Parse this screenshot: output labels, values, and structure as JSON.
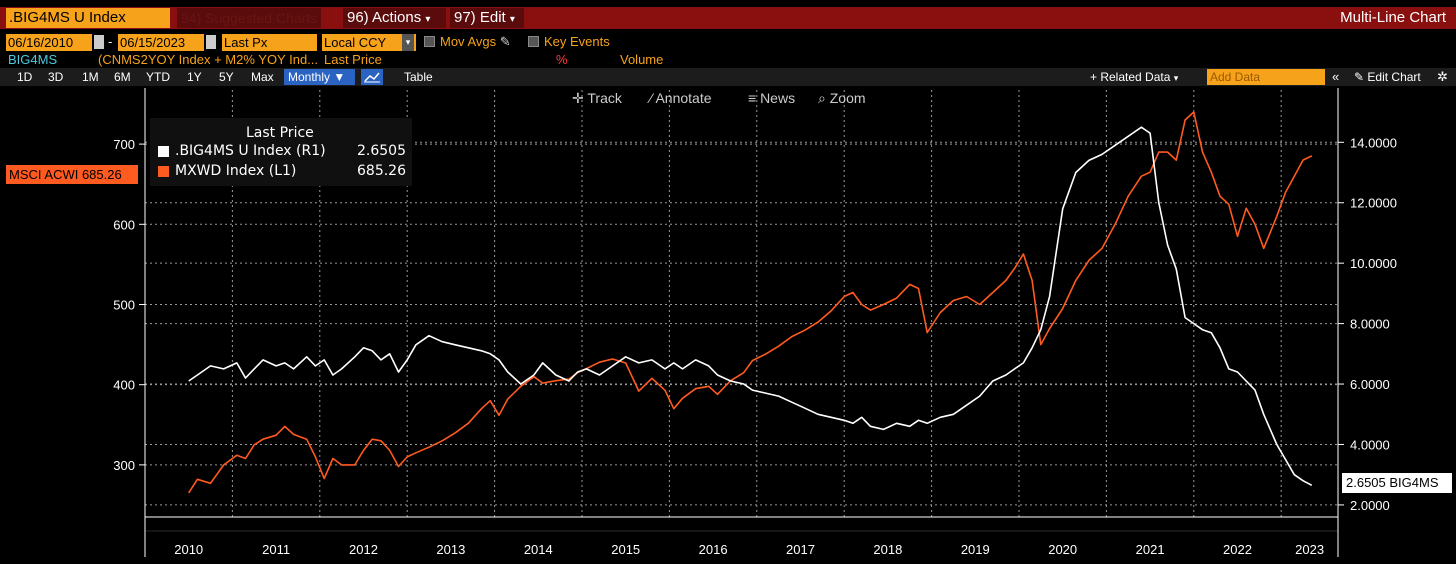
{
  "header": {
    "ticker": ".BIG4MS U Index",
    "suggested": "94) Suggested Charts",
    "actions": "96) Actions",
    "edit": "97) Edit",
    "chart_type": "Multi-Line Chart"
  },
  "controls": {
    "start_date": "06/16/2010",
    "end_date": "06/15/2023",
    "field": "Last Px",
    "currency": "Local CCY",
    "mov_avgs": "Mov Avgs",
    "key_events": "Key Events"
  },
  "series_row": {
    "name": "BIG4MS",
    "formula": "(CNMS2YOY Index + M2% YOY Ind...",
    "field": "Last Price",
    "pct": "%",
    "volume": "Volume"
  },
  "toolbar": {
    "periods": [
      "1D",
      "3D",
      "1M",
      "6M",
      "YTD",
      "1Y",
      "5Y",
      "Max"
    ],
    "frequency": "Monthly",
    "table": "Table",
    "related": "+ Related Data",
    "add_data_placeholder": "Add Data",
    "edit_chart": "Edit Chart"
  },
  "chart_tools": {
    "track": "Track",
    "annotate": "Annotate",
    "news": "News",
    "zoom": "Zoom"
  },
  "legend": {
    "title": "Last Price",
    "rows": [
      {
        "label": ".BIG4MS U Index  (R1)",
        "value": "2.6505",
        "color": "#ffffff"
      },
      {
        "label": "MXWD Index  (L1)",
        "value": "685.26",
        "color": "#ff5a1f"
      }
    ]
  },
  "flags": {
    "left": "MSCI ACWI 685.26",
    "right": "2.6505 BIG4MS"
  },
  "chart_data": {
    "type": "line",
    "x_labels": [
      "2010",
      "2011",
      "2012",
      "2013",
      "2014",
      "2015",
      "2016",
      "2017",
      "2018",
      "2019",
      "2020",
      "2021",
      "2022",
      "2023"
    ],
    "left_axis": {
      "ticks": [
        300,
        400,
        500,
        600,
        700
      ],
      "range": [
        235,
        755
      ]
    },
    "right_axis": {
      "ticks": [
        "2.0000",
        "4.0000",
        "6.0000",
        "8.0000",
        "10.0000",
        "12.0000",
        "14.0000"
      ],
      "range": [
        1.6,
        15.4
      ]
    },
    "grid": true,
    "series": [
      {
        "name": "MXWD Index",
        "axis": "left",
        "color": "#ff5a1f",
        "values": [
          [
            2010.5,
            265
          ],
          [
            2010.6,
            282
          ],
          [
            2010.75,
            277
          ],
          [
            2010.9,
            300
          ],
          [
            2011.05,
            312
          ],
          [
            2011.15,
            308
          ],
          [
            2011.25,
            325
          ],
          [
            2011.35,
            332
          ],
          [
            2011.5,
            337
          ],
          [
            2011.6,
            348
          ],
          [
            2011.7,
            338
          ],
          [
            2011.85,
            332
          ],
          [
            2011.95,
            310
          ],
          [
            2012.05,
            283
          ],
          [
            2012.15,
            308
          ],
          [
            2012.25,
            300
          ],
          [
            2012.4,
            300
          ],
          [
            2012.5,
            318
          ],
          [
            2012.6,
            332
          ],
          [
            2012.7,
            330
          ],
          [
            2012.8,
            318
          ],
          [
            2012.9,
            298
          ],
          [
            2013.0,
            310
          ],
          [
            2013.1,
            315
          ],
          [
            2013.25,
            322
          ],
          [
            2013.4,
            330
          ],
          [
            2013.55,
            340
          ],
          [
            2013.7,
            352
          ],
          [
            2013.85,
            370
          ],
          [
            2013.95,
            380
          ],
          [
            2014.05,
            362
          ],
          [
            2014.15,
            382
          ],
          [
            2014.3,
            398
          ],
          [
            2014.45,
            410
          ],
          [
            2014.55,
            402
          ],
          [
            2014.7,
            405
          ],
          [
            2014.85,
            407
          ],
          [
            2014.95,
            415
          ],
          [
            2015.05,
            420
          ],
          [
            2015.2,
            428
          ],
          [
            2015.35,
            432
          ],
          [
            2015.5,
            427
          ],
          [
            2015.65,
            392
          ],
          [
            2015.8,
            408
          ],
          [
            2015.95,
            393
          ],
          [
            2016.05,
            370
          ],
          [
            2016.15,
            383
          ],
          [
            2016.3,
            395
          ],
          [
            2016.45,
            398
          ],
          [
            2016.55,
            388
          ],
          [
            2016.7,
            405
          ],
          [
            2016.85,
            415
          ],
          [
            2016.95,
            430
          ],
          [
            2017.1,
            438
          ],
          [
            2017.25,
            448
          ],
          [
            2017.4,
            460
          ],
          [
            2017.55,
            468
          ],
          [
            2017.7,
            478
          ],
          [
            2017.85,
            492
          ],
          [
            2018.0,
            510
          ],
          [
            2018.1,
            515
          ],
          [
            2018.2,
            500
          ],
          [
            2018.3,
            493
          ],
          [
            2018.45,
            500
          ],
          [
            2018.6,
            508
          ],
          [
            2018.75,
            525
          ],
          [
            2018.85,
            520
          ],
          [
            2018.95,
            465
          ],
          [
            2019.1,
            490
          ],
          [
            2019.25,
            505
          ],
          [
            2019.4,
            510
          ],
          [
            2019.55,
            500
          ],
          [
            2019.7,
            515
          ],
          [
            2019.85,
            530
          ],
          [
            2019.95,
            545
          ],
          [
            2020.05,
            563
          ],
          [
            2020.15,
            530
          ],
          [
            2020.25,
            450
          ],
          [
            2020.35,
            470
          ],
          [
            2020.5,
            495
          ],
          [
            2020.65,
            530
          ],
          [
            2020.8,
            555
          ],
          [
            2020.95,
            570
          ],
          [
            2021.1,
            600
          ],
          [
            2021.25,
            635
          ],
          [
            2021.4,
            660
          ],
          [
            2021.5,
            665
          ],
          [
            2021.6,
            690
          ],
          [
            2021.7,
            690
          ],
          [
            2021.8,
            680
          ],
          [
            2021.9,
            730
          ],
          [
            2022.0,
            740
          ],
          [
            2022.1,
            690
          ],
          [
            2022.2,
            665
          ],
          [
            2022.3,
            635
          ],
          [
            2022.4,
            625
          ],
          [
            2022.5,
            585
          ],
          [
            2022.6,
            620
          ],
          [
            2022.7,
            600
          ],
          [
            2022.8,
            570
          ],
          [
            2022.95,
            610
          ],
          [
            2023.05,
            640
          ],
          [
            2023.15,
            660
          ],
          [
            2023.25,
            680
          ],
          [
            2023.35,
            685.26
          ]
        ]
      },
      {
        "name": ".BIG4MS U Index",
        "axis": "right",
        "color": "#ffffff",
        "values": [
          [
            2010.5,
            6.1
          ],
          [
            2010.6,
            6.3
          ],
          [
            2010.75,
            6.6
          ],
          [
            2010.9,
            6.5
          ],
          [
            2011.05,
            6.7
          ],
          [
            2011.15,
            6.2
          ],
          [
            2011.25,
            6.5
          ],
          [
            2011.35,
            6.8
          ],
          [
            2011.5,
            6.6
          ],
          [
            2011.6,
            6.7
          ],
          [
            2011.7,
            6.5
          ],
          [
            2011.85,
            6.9
          ],
          [
            2011.95,
            6.6
          ],
          [
            2012.05,
            6.8
          ],
          [
            2012.15,
            6.3
          ],
          [
            2012.25,
            6.5
          ],
          [
            2012.4,
            6.9
          ],
          [
            2012.5,
            7.2
          ],
          [
            2012.6,
            7.1
          ],
          [
            2012.7,
            6.8
          ],
          [
            2012.8,
            7.0
          ],
          [
            2012.9,
            6.4
          ],
          [
            2013.0,
            6.8
          ],
          [
            2013.1,
            7.3
          ],
          [
            2013.25,
            7.6
          ],
          [
            2013.4,
            7.4
          ],
          [
            2013.55,
            7.3
          ],
          [
            2013.7,
            7.2
          ],
          [
            2013.85,
            7.1
          ],
          [
            2013.95,
            7.0
          ],
          [
            2014.05,
            6.8
          ],
          [
            2014.15,
            6.4
          ],
          [
            2014.3,
            6.0
          ],
          [
            2014.45,
            6.3
          ],
          [
            2014.55,
            6.7
          ],
          [
            2014.7,
            6.3
          ],
          [
            2014.85,
            6.1
          ],
          [
            2014.95,
            6.4
          ],
          [
            2015.05,
            6.5
          ],
          [
            2015.2,
            6.3
          ],
          [
            2015.35,
            6.6
          ],
          [
            2015.5,
            6.9
          ],
          [
            2015.65,
            6.7
          ],
          [
            2015.8,
            6.8
          ],
          [
            2015.95,
            6.5
          ],
          [
            2016.05,
            6.7
          ],
          [
            2016.15,
            6.5
          ],
          [
            2016.3,
            6.8
          ],
          [
            2016.45,
            6.6
          ],
          [
            2016.55,
            6.3
          ],
          [
            2016.7,
            6.1
          ],
          [
            2016.85,
            6.0
          ],
          [
            2016.95,
            5.8
          ],
          [
            2017.1,
            5.7
          ],
          [
            2017.25,
            5.6
          ],
          [
            2017.4,
            5.4
          ],
          [
            2017.55,
            5.2
          ],
          [
            2017.7,
            5.0
          ],
          [
            2017.85,
            4.9
          ],
          [
            2018.0,
            4.8
          ],
          [
            2018.1,
            4.7
          ],
          [
            2018.2,
            4.9
          ],
          [
            2018.3,
            4.6
          ],
          [
            2018.45,
            4.5
          ],
          [
            2018.6,
            4.7
          ],
          [
            2018.75,
            4.6
          ],
          [
            2018.85,
            4.8
          ],
          [
            2018.95,
            4.7
          ],
          [
            2019.1,
            4.9
          ],
          [
            2019.25,
            5.0
          ],
          [
            2019.4,
            5.3
          ],
          [
            2019.55,
            5.6
          ],
          [
            2019.7,
            6.1
          ],
          [
            2019.85,
            6.3
          ],
          [
            2019.95,
            6.5
          ],
          [
            2020.05,
            6.7
          ],
          [
            2020.15,
            7.2
          ],
          [
            2020.25,
            7.8
          ],
          [
            2020.35,
            8.9
          ],
          [
            2020.5,
            11.8
          ],
          [
            2020.65,
            13.0
          ],
          [
            2020.8,
            13.4
          ],
          [
            2020.95,
            13.6
          ],
          [
            2021.1,
            13.9
          ],
          [
            2021.25,
            14.2
          ],
          [
            2021.4,
            14.5
          ],
          [
            2021.5,
            14.3
          ],
          [
            2021.6,
            12.0
          ],
          [
            2021.7,
            10.6
          ],
          [
            2021.8,
            9.8
          ],
          [
            2021.9,
            8.2
          ],
          [
            2022.0,
            8.0
          ],
          [
            2022.1,
            7.8
          ],
          [
            2022.2,
            7.7
          ],
          [
            2022.3,
            7.2
          ],
          [
            2022.4,
            6.5
          ],
          [
            2022.5,
            6.4
          ],
          [
            2022.6,
            6.1
          ],
          [
            2022.7,
            5.8
          ],
          [
            2022.8,
            5.0
          ],
          [
            2022.95,
            4.0
          ],
          [
            2023.05,
            3.5
          ],
          [
            2023.15,
            3.0
          ],
          [
            2023.25,
            2.8
          ],
          [
            2023.35,
            2.6505
          ]
        ]
      }
    ]
  }
}
